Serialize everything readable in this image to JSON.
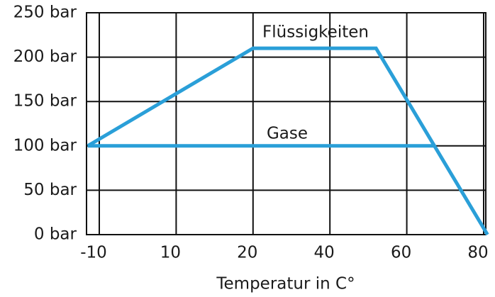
{
  "chart_data": {
    "type": "line",
    "xlabel": "Temperatur in C°",
    "xlim": [
      -13,
      81
    ],
    "xticks": [
      -10,
      10,
      20,
      40,
      60,
      80
    ],
    "ylim": [
      0,
      250
    ],
    "yticks": [
      {
        "value": 0,
        "label": "0 bar"
      },
      {
        "value": 50,
        "label": "50 bar"
      },
      {
        "value": 100,
        "label": "100 bar"
      },
      {
        "value": 150,
        "label": "150 bar"
      },
      {
        "value": 200,
        "label": "200 bar"
      },
      {
        "value": 250,
        "label": "250 bar"
      }
    ],
    "grid": true,
    "series": [
      {
        "name": "Flüssigkeiten",
        "color": "#2a9fd8",
        "x": [
          -13,
          20,
          52,
          81
        ],
        "values": [
          100,
          210,
          210,
          0
        ]
      },
      {
        "name": "Gase",
        "color": "#2a9fd8",
        "x": [
          -13,
          67
        ],
        "values": [
          100,
          100
        ]
      }
    ]
  }
}
